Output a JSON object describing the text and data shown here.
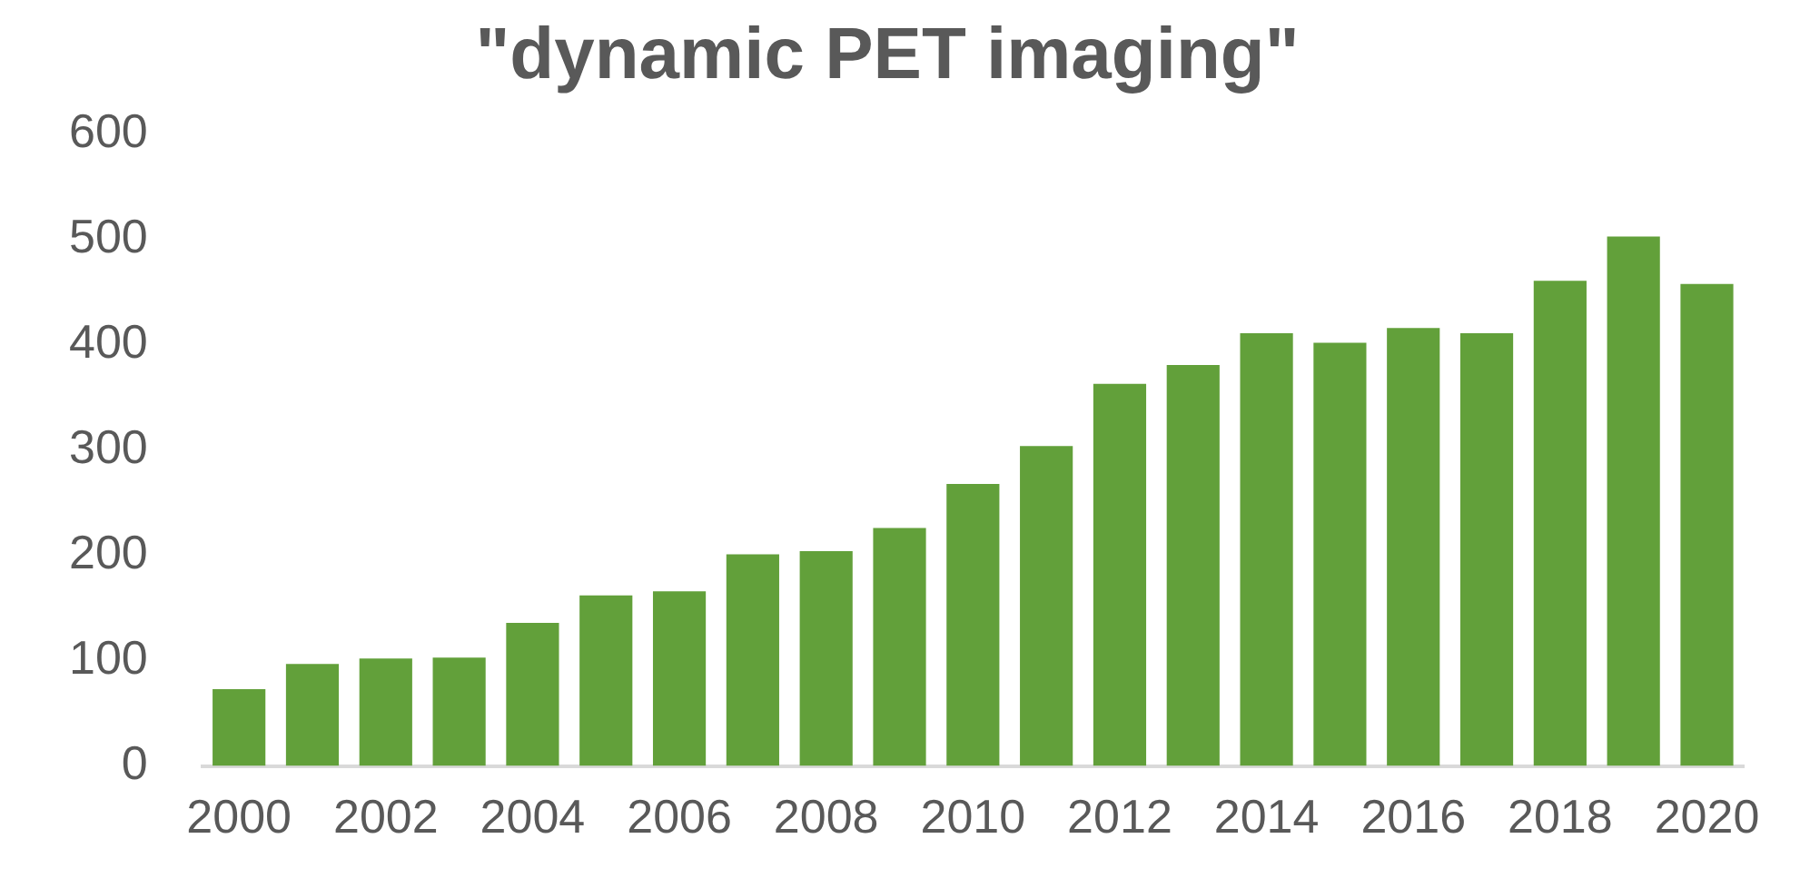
{
  "chart_data": {
    "type": "bar",
    "title": "\"dynamic PET imaging\"",
    "categories": [
      "2000",
      null,
      "2002",
      null,
      "2004",
      null,
      "2006",
      null,
      "2008",
      null,
      "2010",
      null,
      "2012",
      null,
      "2014",
      null,
      "2016",
      null,
      "2018",
      null,
      "2020"
    ],
    "values": [
      73,
      97,
      102,
      103,
      136,
      162,
      166,
      201,
      204,
      226,
      268,
      304,
      363,
      381,
      411,
      402,
      416,
      411,
      461,
      503,
      458
    ],
    "color": "#62a03a",
    "ylim": [
      0,
      600
    ],
    "yticks": [
      0,
      100,
      200,
      300,
      400,
      500,
      600
    ],
    "grid": false
  }
}
